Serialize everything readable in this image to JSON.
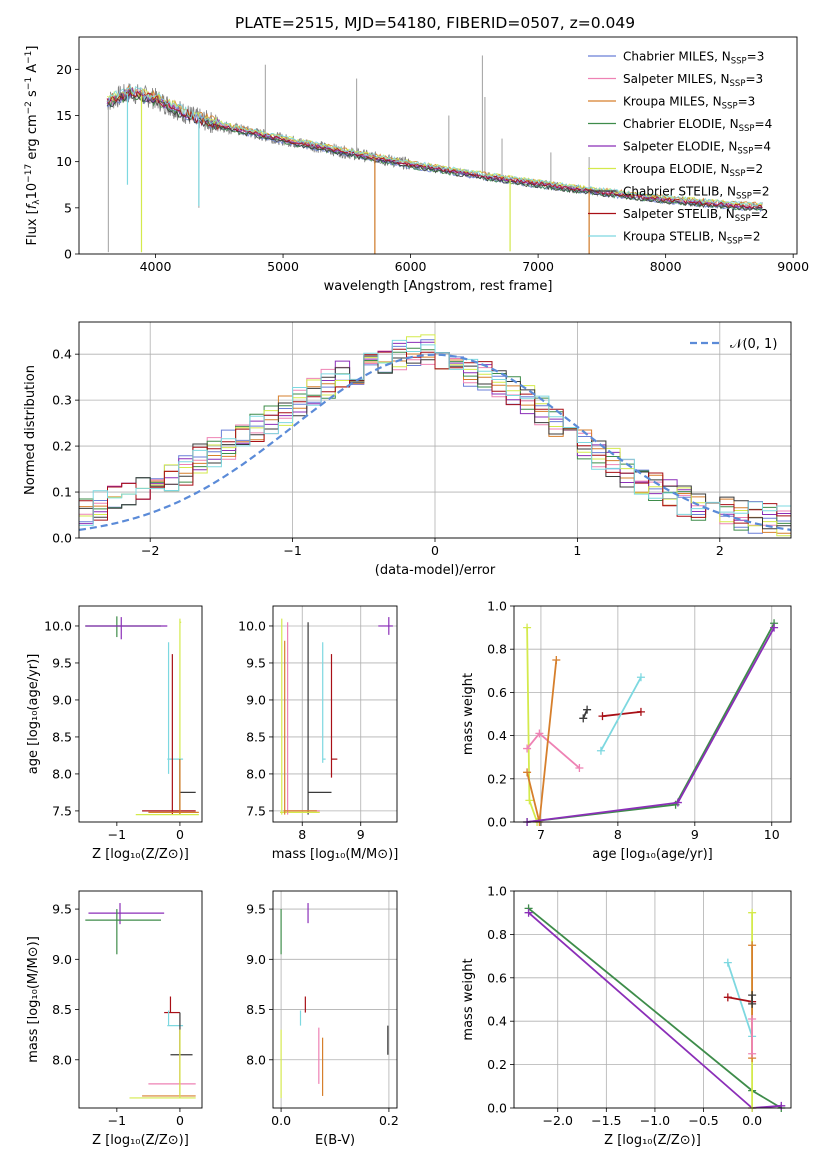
{
  "figure_title": "PLATE=2515, MJD=54180, FIBERID=0507, z=0.049",
  "colors": {
    "Chabrier MILES": "#6a7fd8",
    "Salpeter MILES": "#ee82b4",
    "Kroupa MILES": "#d67f2c",
    "Chabrier ELODIE": "#3e8c4a",
    "Salpeter ELODIE": "#8b2fb8",
    "Kroupa ELODIE": "#d4ea4c",
    "Chabrier STELIB": "#3a3a3a",
    "Salpeter STELIB": "#a80f16",
    "Kroupa STELIB": "#7dd8e0",
    "data": "#808080",
    "normal": "#5b8bd8"
  },
  "chart_data": [
    {
      "id": "spectrum",
      "type": "line",
      "title": "PLATE=2515, MJD=54180, FIBERID=0507, z=0.049",
      "xlabel": "wavelength [Angstrom, rest frame]",
      "ylabel_parts": [
        "Flux [",
        "f",
        "λ",
        "10",
        "−17",
        " erg cm",
        "−2",
        " s",
        "−1",
        " A",
        "−1",
        "]"
      ],
      "xlim": [
        3400,
        9030
      ],
      "ylim": [
        0,
        23.5
      ],
      "xticks": [
        4000,
        5000,
        6000,
        7000,
        8000,
        9000
      ],
      "xticklabels": [
        "4000",
        "5000",
        "6000",
        "7000",
        "8000",
        "9000"
      ],
      "yticks": [
        0,
        5,
        10,
        15,
        20
      ],
      "yticklabels": [
        "0",
        "5",
        "10",
        "15",
        "20"
      ],
      "grid": false,
      "legend_position": "upper right",
      "legend": [
        {
          "name": "Chabrier MILES",
          "n": "3"
        },
        {
          "name": "Salpeter MILES",
          "n": "3"
        },
        {
          "name": "Kroupa MILES",
          "n": "3"
        },
        {
          "name": "Chabrier ELODIE",
          "n": "4"
        },
        {
          "name": "Salpeter ELODIE",
          "n": "4"
        },
        {
          "name": "Kroupa ELODIE",
          "n": "2"
        },
        {
          "name": "Chabrier STELIB",
          "n": "2"
        },
        {
          "name": "Salpeter STELIB",
          "n": "2"
        },
        {
          "name": "Kroupa STELIB",
          "n": "2"
        }
      ],
      "legend_sub": "SSP",
      "legend_prefix": ", N",
      "continuum": {
        "x": [
          3620,
          3800,
          4000,
          4300,
          4600,
          5000,
          5500,
          6000,
          6500,
          7000,
          7500,
          8000,
          8500,
          8760
        ],
        "y": [
          16.5,
          17.5,
          16.8,
          14.8,
          13.6,
          12.4,
          11.0,
          9.7,
          8.6,
          7.6,
          6.7,
          5.9,
          5.3,
          5.1
        ]
      },
      "emission_spikes": [
        {
          "x": 4861,
          "y": 20.5
        },
        {
          "x": 5577,
          "y": 19.0
        },
        {
          "x": 6300,
          "y": 15.0
        },
        {
          "x": 6563,
          "y": 21.5
        },
        {
          "x": 6583,
          "y": 17.0
        },
        {
          "x": 6717,
          "y": 12.5
        },
        {
          "x": 7100,
          "y": 11.0
        },
        {
          "x": 7400,
          "y": 10.5
        }
      ],
      "absorption_spikes": [
        {
          "x": 3630,
          "y": 0.2
        },
        {
          "x": 3890,
          "y": 0.2
        },
        {
          "x": 4340,
          "y": 5.0
        },
        {
          "x": 5720,
          "y": 0.0
        },
        {
          "x": 6780,
          "y": 0.3
        },
        {
          "x": 7400,
          "y": 0.0
        }
      ]
    },
    {
      "id": "residuals",
      "type": "area",
      "xlabel": "(data-model)/error",
      "ylabel": "Normed distribution",
      "xlim": [
        -2.5,
        2.5
      ],
      "ylim": [
        0,
        0.47
      ],
      "xticks": [
        -2,
        -1,
        0,
        1,
        2
      ],
      "xticklabels": [
        "−2",
        "−1",
        "0",
        "1",
        "2"
      ],
      "yticks": [
        0.0,
        0.1,
        0.2,
        0.3,
        0.4
      ],
      "yticklabels": [
        "0.0",
        "0.1",
        "0.2",
        "0.3",
        "0.4"
      ],
      "grid": true,
      "legend_label": "𝒩(0, 1)",
      "legend_position": "upper right",
      "histogram": {
        "x": [
          -2.5,
          -2.3,
          -2.1,
          -1.9,
          -1.7,
          -1.5,
          -1.3,
          -1.1,
          -0.9,
          -0.7,
          -0.5,
          -0.3,
          -0.1,
          0.1,
          0.3,
          0.5,
          0.7,
          0.9,
          1.1,
          1.3,
          1.5,
          1.7,
          1.9,
          2.1,
          2.3,
          2.5
        ],
        "y": [
          0.06,
          0.08,
          0.1,
          0.13,
          0.17,
          0.2,
          0.24,
          0.28,
          0.32,
          0.35,
          0.38,
          0.4,
          0.41,
          0.38,
          0.35,
          0.32,
          0.28,
          0.23,
          0.18,
          0.14,
          0.11,
          0.08,
          0.06,
          0.05,
          0.04,
          0.03
        ]
      }
    },
    {
      "id": "age-vs-Z",
      "type": "scatter",
      "xlabel": "Z [log₁₀(Z/Z⊙)]",
      "ylabel": "age  [log₁₀(age/yr)]",
      "xlim": [
        -1.6,
        0.35
      ],
      "ylim": [
        7.35,
        10.27
      ],
      "xticks": [
        -1,
        0
      ],
      "xticklabels": [
        "−1",
        "0"
      ],
      "yticks": [
        7.5,
        8.0,
        8.5,
        9.0,
        9.5,
        10.0
      ],
      "yticklabels": [
        "7.5",
        "8.0",
        "8.5",
        "9.0",
        "9.5",
        "10.0"
      ],
      "grid": false
    },
    {
      "id": "age-vs-mass",
      "type": "scatter",
      "xlabel": "mass [log₁₀(M/M⊙)]",
      "ylabel": "",
      "xlim": [
        7.5,
        9.62
      ],
      "ylim": [
        7.35,
        10.27
      ],
      "xticks": [
        8,
        9
      ],
      "xticklabels": [
        "8",
        "9"
      ],
      "yticks": [
        7.5,
        8.0,
        8.5,
        9.0,
        9.5,
        10.0
      ],
      "yticklabels": [
        "7.5",
        "8.0",
        "8.5",
        "9.0",
        "9.5",
        "10.0"
      ],
      "grid": true
    },
    {
      "id": "massweight-vs-age",
      "type": "line",
      "xlabel": "age  [log₁₀(age/yr)]",
      "ylabel": "mass weight",
      "xlim": [
        6.65,
        10.25
      ],
      "ylim": [
        0,
        1.0
      ],
      "xticks": [
        7,
        8,
        9,
        10
      ],
      "xticklabels": [
        "7",
        "8",
        "9",
        "10"
      ],
      "yticks": [
        0.0,
        0.2,
        0.4,
        0.6,
        0.8,
        1.0
      ],
      "yticklabels": [
        "0.0",
        "0.2",
        "0.4",
        "0.6",
        "0.8",
        "1.0"
      ],
      "grid": true,
      "series": [
        {
          "key": "Kroupa ELODIE",
          "x": [
            6.82,
            6.85,
            6.95
          ],
          "y": [
            0.9,
            0.1,
            0.0
          ]
        },
        {
          "key": "Salpeter MILES",
          "x": [
            6.82,
            6.98,
            7.5
          ],
          "y": [
            0.34,
            0.41,
            0.25
          ]
        },
        {
          "key": "Kroupa MILES",
          "x": [
            6.82,
            6.98,
            7.2
          ],
          "y": [
            0.23,
            0.0,
            0.75
          ]
        },
        {
          "key": "Chabrier STELIB",
          "x": [
            7.55,
            7.6
          ],
          "y": [
            0.48,
            0.52
          ]
        },
        {
          "key": "Salpeter STELIB",
          "x": [
            7.8,
            8.3
          ],
          "y": [
            0.49,
            0.51
          ]
        },
        {
          "key": "Kroupa STELIB",
          "x": [
            7.78,
            8.3
          ],
          "y": [
            0.33,
            0.67
          ]
        },
        {
          "key": "Chabrier ELODIE",
          "x": [
            6.82,
            8.75,
            10.03
          ],
          "y": [
            0.0,
            0.08,
            0.92
          ]
        },
        {
          "key": "Salpeter ELODIE",
          "x": [
            6.82,
            8.78,
            10.03
          ],
          "y": [
            0.0,
            0.09,
            0.9
          ]
        }
      ]
    },
    {
      "id": "mass-vs-Z",
      "type": "scatter",
      "xlabel": "Z [log₁₀(Z/Z⊙)]",
      "ylabel": "mass [log₁₀(M/M⊙)]",
      "xlim": [
        -1.6,
        0.35
      ],
      "ylim": [
        7.52,
        9.68
      ],
      "xticks": [
        -1,
        0
      ],
      "xticklabels": [
        "−1",
        "0"
      ],
      "yticks": [
        8.0,
        8.5,
        9.0,
        9.5
      ],
      "yticklabels": [
        "8.0",
        "8.5",
        "9.0",
        "9.5"
      ],
      "grid": false
    },
    {
      "id": "mass-vs-ebv",
      "type": "scatter",
      "xlabel": "E(B-V)",
      "ylabel": "",
      "xlim": [
        -0.015,
        0.215
      ],
      "ylim": [
        7.52,
        9.68
      ],
      "xticks": [
        0.0,
        0.2
      ],
      "xticklabels": [
        "0.0",
        "0.2"
      ],
      "yticks": [
        8.0,
        8.5,
        9.0,
        9.5
      ],
      "yticklabels": [
        "8.0",
        "8.5",
        "9.0",
        "9.5"
      ],
      "grid": true
    },
    {
      "id": "massweight-vs-Z",
      "type": "line",
      "xlabel": "Z [log₁₀(Z/Z⊙)]",
      "ylabel": "mass weight",
      "xlim": [
        -2.45,
        0.4
      ],
      "ylim": [
        0,
        1.0
      ],
      "xticks": [
        -2.0,
        -1.5,
        -1.0,
        -0.5,
        0.0
      ],
      "xticklabels": [
        "−2.0",
        "−1.5",
        "−1.0",
        "−0.5",
        "0.0"
      ],
      "yticks": [
        0.0,
        0.2,
        0.4,
        0.6,
        0.8,
        1.0
      ],
      "yticklabels": [
        "0.0",
        "0.2",
        "0.4",
        "0.6",
        "0.8",
        "1.0"
      ],
      "grid": true,
      "series": [
        {
          "key": "Chabrier ELODIE",
          "x": [
            -2.3,
            0.0,
            0.3
          ],
          "y": [
            0.92,
            0.08,
            0.0
          ]
        },
        {
          "key": "Salpeter ELODIE",
          "x": [
            -2.3,
            0.0,
            0.3
          ],
          "y": [
            0.9,
            0.0,
            0.01
          ]
        },
        {
          "key": "Kroupa STELIB",
          "x": [
            -0.25,
            0.0
          ],
          "y": [
            0.67,
            0.33
          ]
        },
        {
          "key": "Salpeter STELIB",
          "x": [
            -0.25,
            0.0
          ],
          "y": [
            0.51,
            0.49
          ]
        },
        {
          "key": "Kroupa ELODIE",
          "x": [
            0.0,
            0.0
          ],
          "y": [
            0.9,
            0.0
          ]
        },
        {
          "key": "Kroupa MILES",
          "x": [
            0.0,
            0.0
          ],
          "y": [
            0.75,
            0.23
          ]
        },
        {
          "key": "Chabrier STELIB",
          "x": [
            0.0,
            0.0
          ],
          "y": [
            0.52,
            0.48
          ]
        },
        {
          "key": "Salpeter MILES",
          "x": [
            0.0,
            0.0
          ],
          "y": [
            0.41,
            0.25
          ]
        }
      ]
    }
  ]
}
